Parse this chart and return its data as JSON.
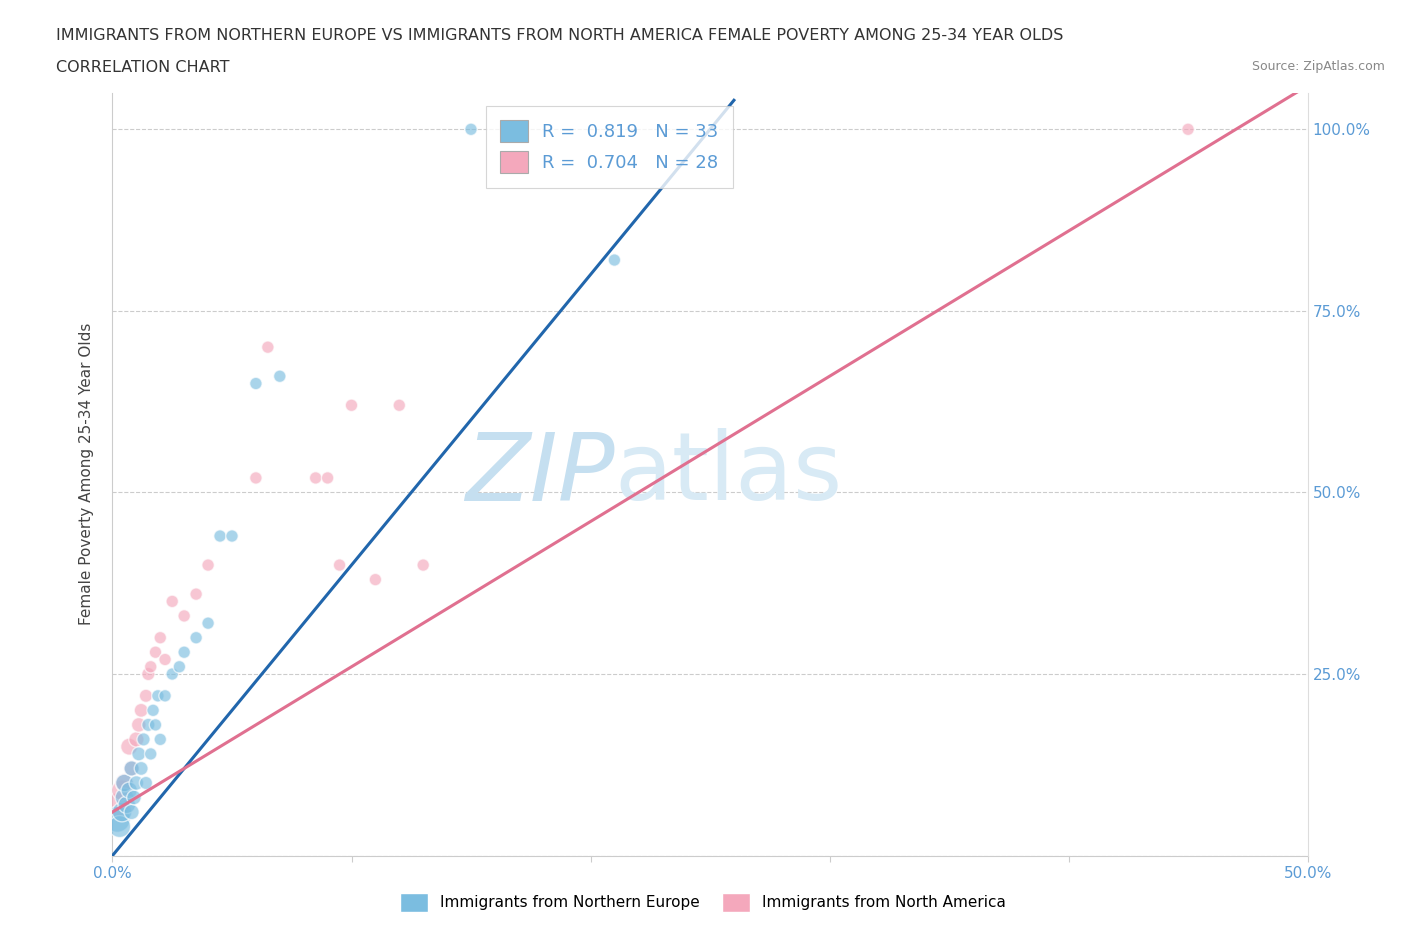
{
  "title": "IMMIGRANTS FROM NORTHERN EUROPE VS IMMIGRANTS FROM NORTH AMERICA FEMALE POVERTY AMONG 25-34 YEAR OLDS",
  "subtitle": "CORRELATION CHART",
  "source": "Source: ZipAtlas.com",
  "ylabel": "Female Poverty Among 25-34 Year Olds",
  "xlim": [
    0,
    0.5
  ],
  "ylim": [
    0,
    1.05
  ],
  "blue_color": "#7bbde0",
  "pink_color": "#f4a8bc",
  "blue_line_color": "#2166ac",
  "pink_line_color": "#e07090",
  "R_blue": 0.819,
  "N_blue": 33,
  "R_pink": 0.704,
  "N_pink": 28,
  "watermark_zip": "ZIP",
  "watermark_atlas": "atlas",
  "blue_scatter_x": [
    0.002,
    0.003,
    0.004,
    0.005,
    0.005,
    0.006,
    0.007,
    0.008,
    0.008,
    0.009,
    0.01,
    0.011,
    0.012,
    0.013,
    0.014,
    0.015,
    0.016,
    0.017,
    0.018,
    0.019,
    0.02,
    0.022,
    0.025,
    0.028,
    0.03,
    0.035,
    0.04,
    0.045,
    0.05,
    0.06,
    0.07,
    0.15,
    0.21
  ],
  "blue_scatter_y": [
    0.05,
    0.04,
    0.06,
    0.08,
    0.1,
    0.07,
    0.09,
    0.06,
    0.12,
    0.08,
    0.1,
    0.14,
    0.12,
    0.16,
    0.1,
    0.18,
    0.14,
    0.2,
    0.18,
    0.22,
    0.16,
    0.22,
    0.25,
    0.26,
    0.28,
    0.3,
    0.32,
    0.44,
    0.44,
    0.65,
    0.66,
    1.0,
    0.82
  ],
  "blue_scatter_sizes": [
    350,
    250,
    200,
    180,
    160,
    160,
    140,
    120,
    120,
    110,
    110,
    100,
    100,
    90,
    90,
    90,
    80,
    80,
    80,
    80,
    80,
    80,
    80,
    80,
    80,
    80,
    80,
    80,
    80,
    80,
    80,
    80,
    80
  ],
  "pink_scatter_x": [
    0.002,
    0.004,
    0.005,
    0.007,
    0.008,
    0.01,
    0.011,
    0.012,
    0.014,
    0.015,
    0.016,
    0.018,
    0.02,
    0.022,
    0.025,
    0.03,
    0.035,
    0.04,
    0.06,
    0.065,
    0.085,
    0.09,
    0.095,
    0.1,
    0.11,
    0.12,
    0.13,
    0.45
  ],
  "pink_scatter_y": [
    0.07,
    0.09,
    0.1,
    0.15,
    0.12,
    0.16,
    0.18,
    0.2,
    0.22,
    0.25,
    0.26,
    0.28,
    0.3,
    0.27,
    0.35,
    0.33,
    0.36,
    0.4,
    0.52,
    0.7,
    0.52,
    0.52,
    0.4,
    0.62,
    0.38,
    0.62,
    0.4,
    1.0
  ],
  "pink_scatter_sizes": [
    300,
    220,
    180,
    150,
    130,
    120,
    110,
    100,
    90,
    90,
    80,
    80,
    80,
    80,
    80,
    80,
    80,
    80,
    80,
    80,
    80,
    80,
    80,
    80,
    80,
    80,
    80,
    80
  ],
  "blue_line_x": [
    0.0,
    0.26
  ],
  "blue_line_y": [
    0.0,
    1.04
  ],
  "pink_line_x": [
    0.0,
    0.5
  ],
  "pink_line_y": [
    0.06,
    1.06
  ],
  "xtick_positions": [
    0.0,
    0.5
  ],
  "xtick_labels": [
    "0.0%",
    "50.0%"
  ],
  "ytick_positions": [
    0.25,
    0.5,
    0.75,
    1.0
  ],
  "ytick_labels": [
    "25.0%",
    "50.0%",
    "75.0%",
    "100.0%"
  ],
  "grid_color": "#cccccc",
  "tick_color": "#5b9bd5"
}
